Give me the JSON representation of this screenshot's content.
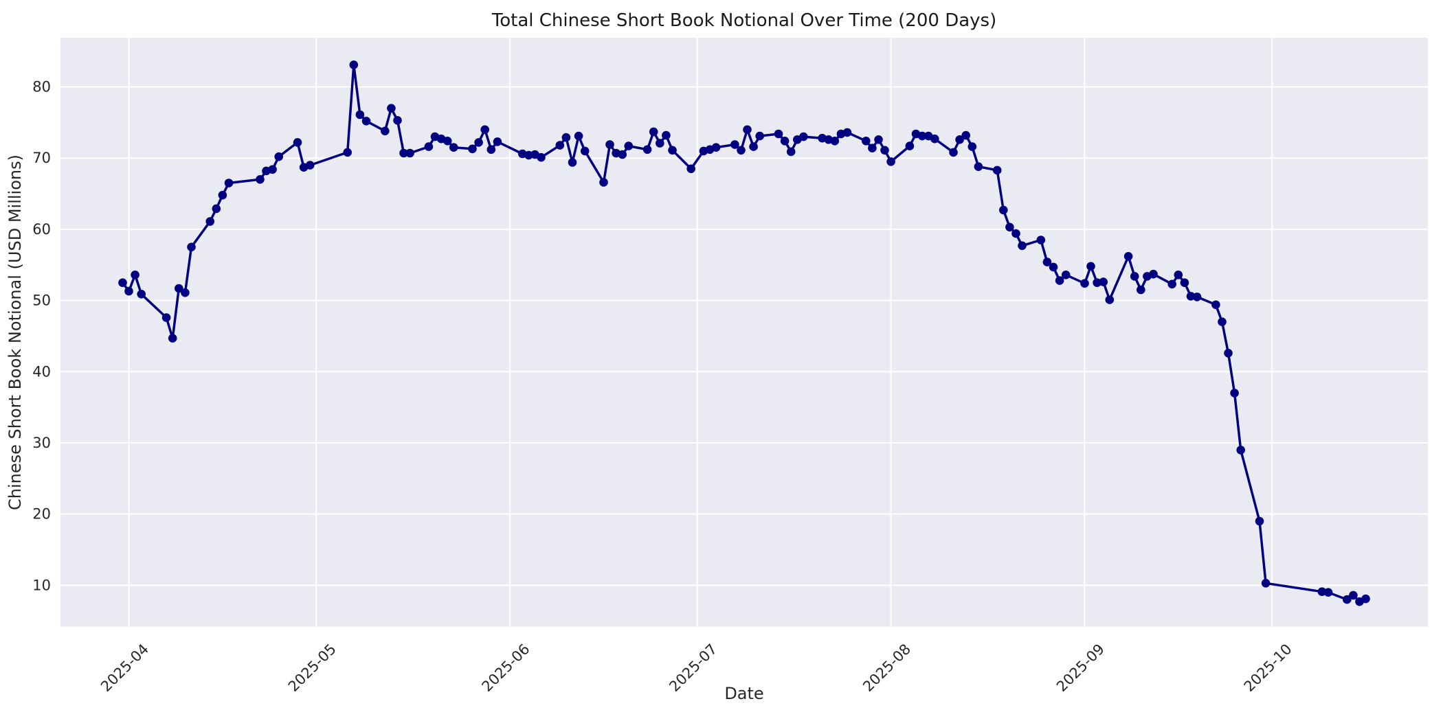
{
  "chart_data": {
    "type": "line",
    "title": "Total Chinese Short Book Notional Over Time (200 Days)",
    "xlabel": "Date",
    "ylabel": "Chinese Short Book Notional (USD Millions)",
    "grid": true,
    "legend_visible": false,
    "plot_bg_color": "#eaeaf2",
    "grid_color": "#ffffff",
    "text_color": "#262626",
    "line_color": "#000080",
    "marker": "o",
    "y_ticks": [
      10,
      20,
      30,
      40,
      50,
      60,
      70,
      80
    ],
    "ylim": [
      4.2,
      86.9
    ],
    "x_ticks": [
      {
        "date": "2025-04-01",
        "label": "2025-04"
      },
      {
        "date": "2025-05-01",
        "label": "2025-05"
      },
      {
        "date": "2025-06-01",
        "label": "2025-06"
      },
      {
        "date": "2025-07-01",
        "label": "2025-07"
      },
      {
        "date": "2025-08-01",
        "label": "2025-08"
      },
      {
        "date": "2025-09-01",
        "label": "2025-09"
      },
      {
        "date": "2025-10-01",
        "label": "2025-10"
      }
    ],
    "series": [
      {
        "name": "Total Chinese Short Book Notional",
        "dates": [
          "2025-03-31",
          "2025-04-01",
          "2025-04-02",
          "2025-04-03",
          "2025-04-07",
          "2025-04-08",
          "2025-04-09",
          "2025-04-10",
          "2025-04-11",
          "2025-04-14",
          "2025-04-15",
          "2025-04-16",
          "2025-04-17",
          "2025-04-22",
          "2025-04-23",
          "2025-04-24",
          "2025-04-25",
          "2025-04-28",
          "2025-04-29",
          "2025-04-30",
          "2025-05-06",
          "2025-05-07",
          "2025-05-08",
          "2025-05-09",
          "2025-05-12",
          "2025-05-13",
          "2025-05-14",
          "2025-05-15",
          "2025-05-16",
          "2025-05-19",
          "2025-05-20",
          "2025-05-21",
          "2025-05-22",
          "2025-05-23",
          "2025-05-26",
          "2025-05-27",
          "2025-05-28",
          "2025-05-29",
          "2025-05-30",
          "2025-06-03",
          "2025-06-04",
          "2025-06-05",
          "2025-06-06",
          "2025-06-09",
          "2025-06-10",
          "2025-06-11",
          "2025-06-12",
          "2025-06-13",
          "2025-06-16",
          "2025-06-17",
          "2025-06-18",
          "2025-06-19",
          "2025-06-20",
          "2025-06-23",
          "2025-06-24",
          "2025-06-25",
          "2025-06-26",
          "2025-06-27",
          "2025-06-30",
          "2025-07-02",
          "2025-07-03",
          "2025-07-04",
          "2025-07-07",
          "2025-07-08",
          "2025-07-09",
          "2025-07-10",
          "2025-07-11",
          "2025-07-14",
          "2025-07-15",
          "2025-07-16",
          "2025-07-17",
          "2025-07-18",
          "2025-07-21",
          "2025-07-22",
          "2025-07-23",
          "2025-07-24",
          "2025-07-25",
          "2025-07-28",
          "2025-07-29",
          "2025-07-30",
          "2025-07-31",
          "2025-08-01",
          "2025-08-04",
          "2025-08-05",
          "2025-08-06",
          "2025-08-07",
          "2025-08-08",
          "2025-08-11",
          "2025-08-12",
          "2025-08-13",
          "2025-08-14",
          "2025-08-15",
          "2025-08-18",
          "2025-08-19",
          "2025-08-20",
          "2025-08-21",
          "2025-08-22",
          "2025-08-25",
          "2025-08-26",
          "2025-08-27",
          "2025-08-28",
          "2025-08-29",
          "2025-09-01",
          "2025-09-02",
          "2025-09-03",
          "2025-09-04",
          "2025-09-05",
          "2025-09-08",
          "2025-09-09",
          "2025-09-10",
          "2025-09-11",
          "2025-09-12",
          "2025-09-15",
          "2025-09-16",
          "2025-09-17",
          "2025-09-18",
          "2025-09-19",
          "2025-09-22",
          "2025-09-23",
          "2025-09-24",
          "2025-09-25",
          "2025-09-26",
          "2025-09-29",
          "2025-09-30",
          "2025-10-09",
          "2025-10-10",
          "2025-10-13",
          "2025-10-14",
          "2025-10-15",
          "2025-10-16"
        ],
        "values": [
          52.5,
          51.3,
          53.6,
          50.9,
          47.6,
          44.7,
          51.7,
          51.1,
          57.5,
          61.1,
          62.9,
          64.8,
          66.5,
          67.0,
          68.2,
          68.4,
          70.2,
          72.2,
          68.7,
          69.0,
          70.8,
          83.1,
          76.1,
          75.2,
          73.8,
          77.0,
          75.3,
          70.7,
          70.7,
          71.6,
          73.0,
          72.7,
          72.4,
          71.5,
          71.3,
          72.2,
          74.0,
          71.2,
          72.3,
          70.6,
          70.4,
          70.5,
          70.1,
          71.8,
          72.9,
          69.4,
          73.1,
          71.0,
          66.6,
          71.9,
          70.7,
          70.5,
          71.7,
          71.2,
          73.7,
          72.1,
          73.2,
          71.1,
          68.5,
          71.0,
          71.2,
          71.5,
          71.9,
          71.1,
          74.0,
          71.6,
          73.1,
          73.4,
          72.4,
          70.9,
          72.6,
          73.0,
          72.8,
          72.6,
          72.4,
          73.4,
          73.6,
          72.4,
          71.4,
          72.6,
          71.1,
          69.5,
          71.7,
          73.4,
          73.1,
          73.1,
          72.7,
          70.8,
          72.6,
          73.2,
          71.6,
          68.8,
          68.3,
          62.7,
          60.3,
          59.4,
          57.7,
          58.5,
          55.4,
          54.7,
          52.8,
          53.6,
          52.4,
          54.8,
          52.5,
          52.6,
          50.1,
          56.2,
          53.4,
          51.5,
          53.4,
          53.7,
          52.3,
          53.6,
          52.5,
          50.6,
          50.5,
          49.4,
          47.0,
          42.6,
          37.0,
          29.0,
          19.0,
          10.3,
          9.1,
          9.0,
          8.0,
          8.6,
          7.7,
          8.1
        ]
      }
    ]
  }
}
